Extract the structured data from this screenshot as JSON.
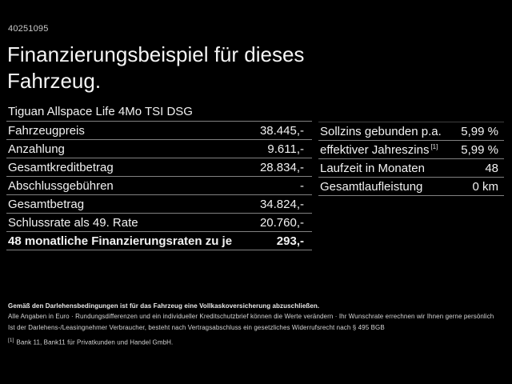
{
  "page": {
    "vehicle_id": "40251095",
    "title_line1": "Finanzierungsbeispiel für dieses",
    "title_line2": "Fahrzeug."
  },
  "financing_table": {
    "header": "Tiguan Allspace Life 4Mo TSI DSG",
    "rows": [
      {
        "label": "Fahrzeugpreis",
        "value": "38.445,-"
      },
      {
        "label": "Anzahlung",
        "value": "9.611,-"
      },
      {
        "label": "Gesamtkreditbetrag",
        "value": "28.834,-"
      },
      {
        "label": "Abschlussgebühren",
        "value": "-"
      },
      {
        "label": "Gesamtbetrag",
        "value": "34.824,-"
      },
      {
        "label": "Schlussrate als 49. Rate",
        "value": "20.760,-"
      },
      {
        "label": "48 monatliche Finanzierungsraten zu je",
        "value": "293,-",
        "bold": true
      }
    ]
  },
  "conditions_table": {
    "rows": [
      {
        "label": "Sollzins gebunden p.a.",
        "value": "5,99 %"
      },
      {
        "label": "effektiver Jahreszins",
        "superscript": "[1]",
        "value": "5,99 %"
      },
      {
        "label": "Laufzeit in Monaten",
        "value": "48"
      },
      {
        "label": "Gesamtlaufleistung",
        "value": "0 km"
      }
    ]
  },
  "footer": {
    "line1": "Gemäß den Darlehensbedingungen ist für das Fahrzeug eine Vollkaskoversicherung abzuschließen.",
    "line2": "Alle Angaben in Euro · Rundungsdifferenzen und ein individueller Kreditschutzbrief können die Werte verändern · Ihr Wunschrate errechnen wir Ihnen gerne persönlich",
    "line3": "Ist der Darlehens-/Leasingnehmer Verbraucher, besteht nach Vertragsabschluss ein gesetzliches Widerrufsrecht nach § 495 BGB",
    "note_marker": "[1]",
    "note_text": "Bank 11, Bank11 für Privatkunden und Handel GmbH."
  },
  "colors": {
    "background": "#000000",
    "text_primary": "#f2f2f2",
    "divider": "#828282"
  }
}
